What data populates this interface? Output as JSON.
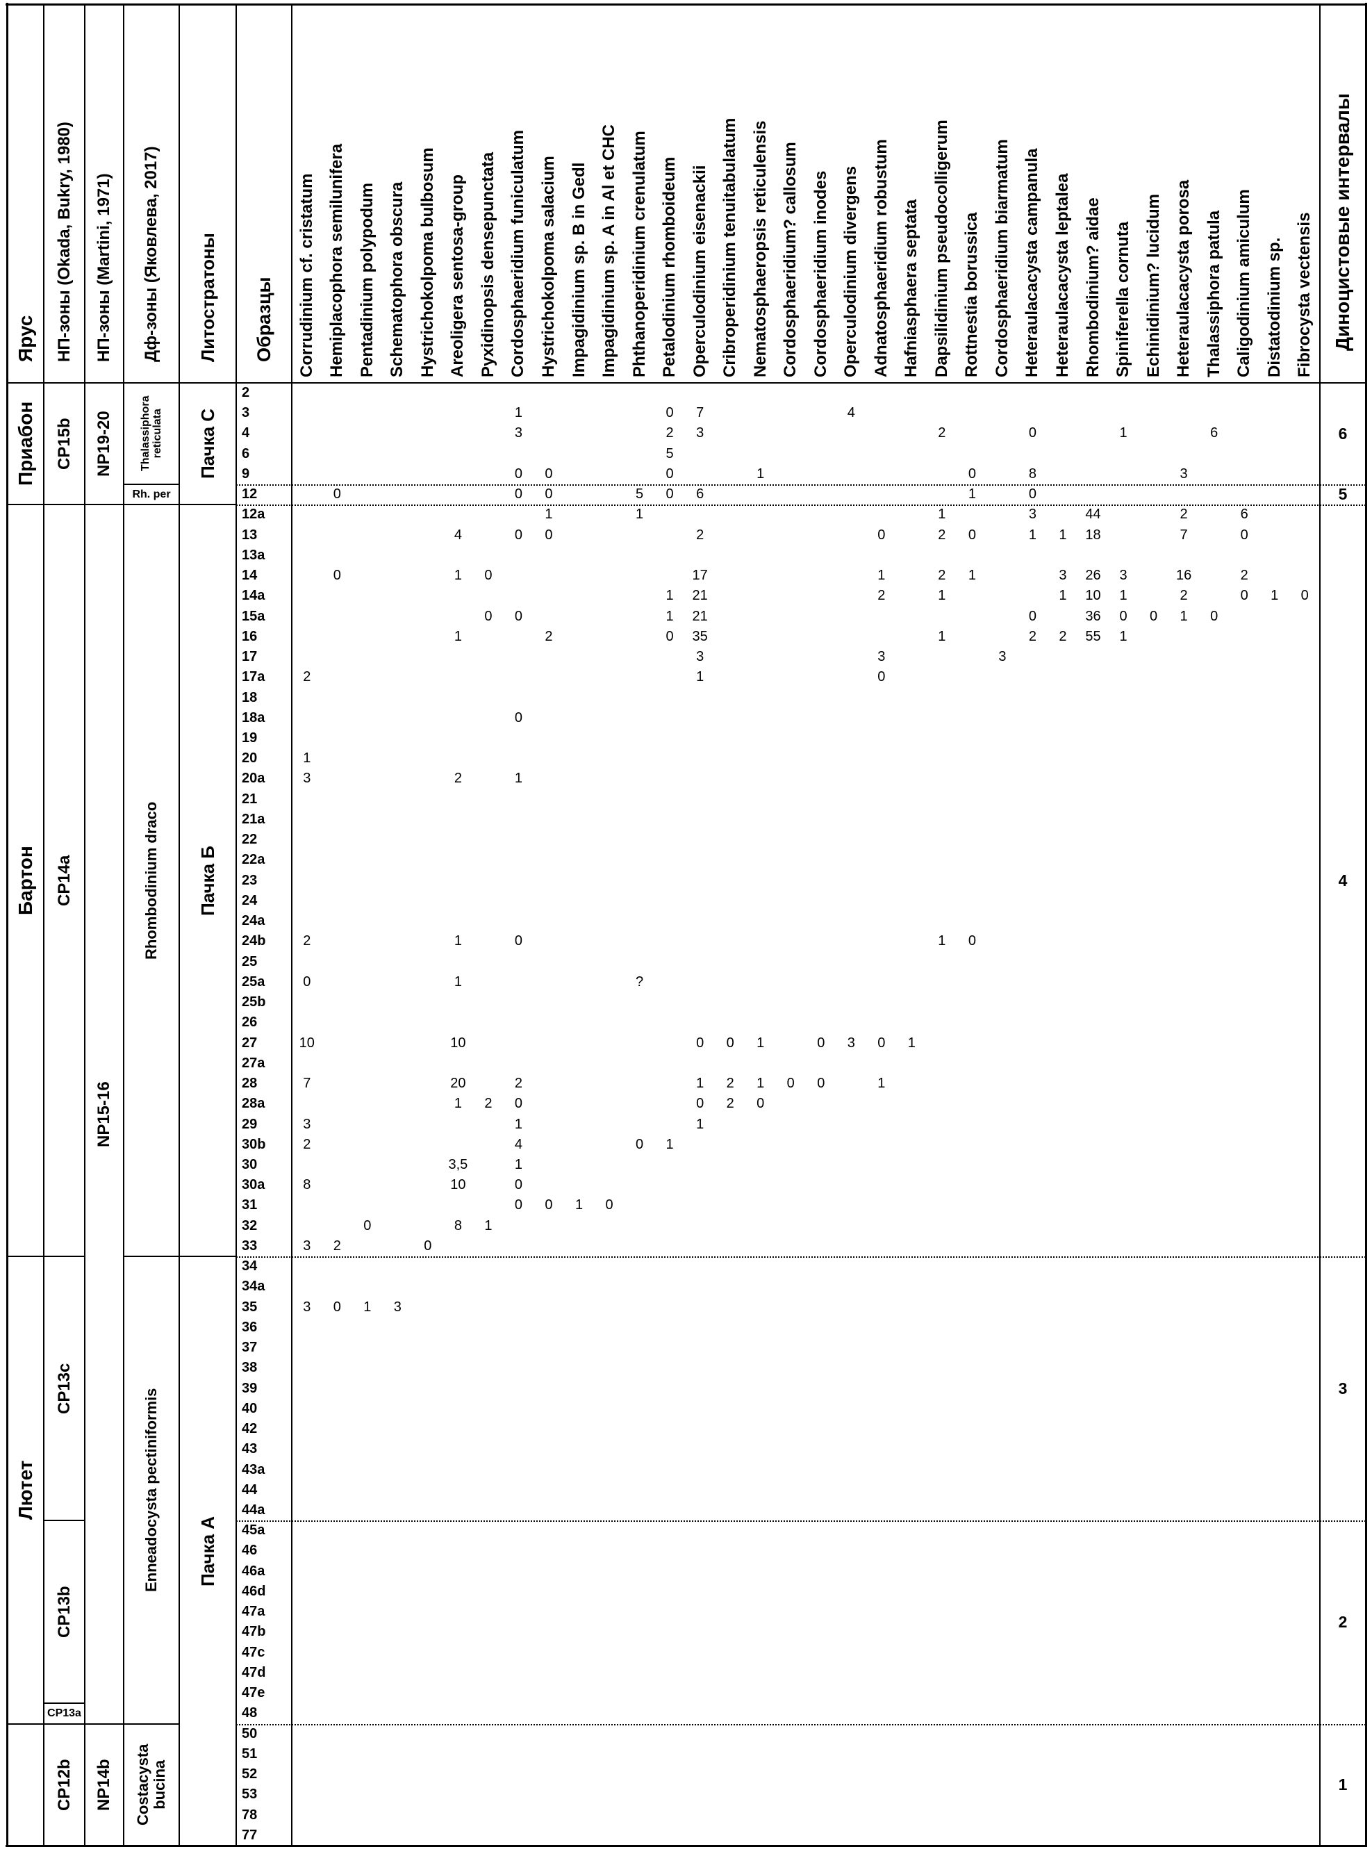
{
  "columns": {
    "stage": "Ярус",
    "cp": "НП-зоны (Okada, Bukry, 1980)",
    "np": "НП-зоны (Martini, 1971)",
    "df": "Дф-зоны (Яковлева, 2017)",
    "litho": "Литостратоны",
    "samples": "Образцы",
    "intervals": "Диноцистовые интервалы"
  },
  "colors": {
    "ink": "#000000",
    "background": "#ffffff"
  },
  "chart_data": {
    "type": "table",
    "species": [
      "Corrudinium cf. cristatum",
      "Hemiplacophora semilunifera",
      "Pentadinium polypodum",
      "Schematophora obscura",
      "Hystrichokolpoma bulbosum",
      "Areoligera sentosa-group",
      "Pyxidinopsis densepunctata",
      "Cordosphaeridium funiculatum",
      "Hystrichokolpoma salacium",
      "Impagidinium sp. B in Gedl",
      "Impagidinium sp. A in Al et CHC",
      "Phthanoperidinium crenulatum",
      "Petalodinium rhomboideum",
      "Operculodinium eisenackii",
      "Cribroperidinium tenuitabulatum",
      "Nematosphaeropsis reticulensis",
      "Cordosphaeridium? callosum",
      "Cordosphaeridium inodes",
      "Operculodinium divergens",
      "Adnatosphaeridium robustum",
      "Hafniasphaera septata",
      "Dapsilidinium pseudocolligerum",
      "Rottnestia borussica",
      "Cordosphaeridium biarmatum",
      "Heteraulacacysta campanula",
      "Heteraulacacysta leptalea",
      "Rhombodinium? aidae",
      "Spiniferella cornuta",
      "Echinidinium? lucidum",
      "Heteraulacacysta porosa",
      "Thalassiphora patula",
      "Caligodinium amiculum",
      "Distatodinium sp.",
      "Fibrocysta vectensis"
    ],
    "samples": [
      "2",
      "3",
      "4",
      "6",
      "9",
      "12",
      "12a",
      "13",
      "13a",
      "14",
      "14a",
      "15a",
      "16",
      "17",
      "17a",
      "18",
      "18a",
      "19",
      "20",
      "20a",
      "21",
      "21a",
      "22",
      "22a",
      "23",
      "24",
      "24a",
      "24b",
      "25",
      "25a",
      "25b",
      "26",
      "27",
      "27a",
      "28",
      "28a",
      "29",
      "30b",
      "30",
      "30a",
      "31",
      "32",
      "33",
      "34",
      "34a",
      "35",
      "36",
      "37",
      "38",
      "39",
      "40",
      "42",
      "43",
      "43a",
      "44",
      "44a",
      "45a",
      "46",
      "46a",
      "46d",
      "47a",
      "47b",
      "47c",
      "47d",
      "47e",
      "48",
      "50",
      "51",
      "52",
      "53",
      "78",
      "77"
    ],
    "stage_zones": [
      {
        "label": "Приабон",
        "from": "2",
        "to": "12"
      },
      {
        "label": "Бартон",
        "from": "12a",
        "to": "33"
      },
      {
        "label": "Лютет",
        "from": "34",
        "to": "48"
      },
      {
        "label": "",
        "from": "50",
        "to": "77"
      }
    ],
    "cp_zones": [
      {
        "label": "CP15b",
        "from": "2",
        "to": "12"
      },
      {
        "label": "CP14a",
        "from": "12a",
        "to": "33"
      },
      {
        "label": "CP13c",
        "from": "34",
        "to": "44a"
      },
      {
        "label": "CP13b",
        "from": "45a",
        "to": "47e"
      },
      {
        "label": "CP13a",
        "from": "48",
        "to": "48",
        "horizontal": true,
        "small": true
      },
      {
        "label": "CP12b",
        "from": "50",
        "to": "77"
      }
    ],
    "np_zones": [
      {
        "label": "NP19-20",
        "from": "2",
        "to": "12"
      },
      {
        "label": "NP15-16",
        "from": "12a",
        "to": "48"
      },
      {
        "label": "NP14b",
        "from": "50",
        "to": "77"
      }
    ],
    "df_zones": [
      {
        "label": "Thalassiphora reticulata",
        "from": "2",
        "to": "9",
        "two_line": true,
        "small": true
      },
      {
        "label": "Rh. per",
        "from": "12",
        "to": "12",
        "horizontal": true,
        "small": true
      },
      {
        "label": "Rhombodinium draco",
        "from": "12a",
        "to": "33"
      },
      {
        "label": "Enneadocysta pectiniformis",
        "from": "34",
        "to": "48"
      },
      {
        "label": "Costacysta bucina",
        "from": "50",
        "to": "77",
        "two_line": true
      }
    ],
    "litho_zones": [
      {
        "label": "Пачка С",
        "from": "2",
        "to": "12"
      },
      {
        "label": "Пачка Б",
        "from": "12a",
        "to": "33"
      },
      {
        "label": "Пачка А",
        "from": "34",
        "to": "77"
      }
    ],
    "intervals": [
      {
        "label": "6",
        "from": "2",
        "to": "9"
      },
      {
        "label": "5",
        "from": "12",
        "to": "12"
      },
      {
        "label": "4",
        "from": "12a",
        "to": "33"
      },
      {
        "label": "3",
        "from": "34",
        "to": "44a"
      },
      {
        "label": "2",
        "from": "45a",
        "to": "48"
      },
      {
        "label": "1",
        "from": "50",
        "to": "77"
      }
    ],
    "occurrences": {
      "3": [
        [
          7,
          "1"
        ],
        [
          12,
          "0"
        ],
        [
          13,
          "7"
        ],
        [
          18,
          "4"
        ]
      ],
      "4": [
        [
          7,
          "3"
        ],
        [
          12,
          "2"
        ],
        [
          13,
          "3"
        ],
        [
          21,
          "2"
        ],
        [
          24,
          "0"
        ],
        [
          27,
          "1"
        ],
        [
          30,
          "6"
        ]
      ],
      "6": [
        [
          12,
          "5"
        ]
      ],
      "9": [
        [
          7,
          "0"
        ],
        [
          8,
          "0"
        ],
        [
          12,
          "0"
        ],
        [
          15,
          "1"
        ],
        [
          22,
          "0"
        ],
        [
          24,
          "8"
        ],
        [
          29,
          "3"
        ]
      ],
      "12": [
        [
          1,
          "0"
        ],
        [
          7,
          "0"
        ],
        [
          8,
          "0"
        ],
        [
          11,
          "5"
        ],
        [
          12,
          "0"
        ],
        [
          13,
          "6"
        ],
        [
          22,
          "1"
        ],
        [
          24,
          "0"
        ]
      ],
      "12a": [
        [
          8,
          "1"
        ],
        [
          11,
          "1"
        ],
        [
          21,
          "1"
        ],
        [
          24,
          "3"
        ],
        [
          26,
          "44"
        ],
        [
          29,
          "2"
        ],
        [
          31,
          "6"
        ]
      ],
      "13": [
        [
          5,
          "4"
        ],
        [
          7,
          "0"
        ],
        [
          8,
          "0"
        ],
        [
          13,
          "2"
        ],
        [
          19,
          "0"
        ],
        [
          21,
          "2"
        ],
        [
          22,
          "0"
        ],
        [
          24,
          "1"
        ],
        [
          25,
          "1"
        ],
        [
          26,
          "18"
        ],
        [
          29,
          "7"
        ],
        [
          31,
          "0"
        ]
      ],
      "14": [
        [
          1,
          "0"
        ],
        [
          5,
          "1"
        ],
        [
          6,
          "0"
        ],
        [
          13,
          "17"
        ],
        [
          19,
          "1"
        ],
        [
          21,
          "2"
        ],
        [
          22,
          "1"
        ],
        [
          25,
          "3"
        ],
        [
          26,
          "26"
        ],
        [
          27,
          "3"
        ],
        [
          29,
          "16"
        ],
        [
          31,
          "2"
        ]
      ],
      "14a": [
        [
          12,
          "1"
        ],
        [
          13,
          "21"
        ],
        [
          19,
          "2"
        ],
        [
          21,
          "1"
        ],
        [
          25,
          "1"
        ],
        [
          26,
          "10"
        ],
        [
          27,
          "1"
        ],
        [
          29,
          "2"
        ],
        [
          31,
          "0"
        ],
        [
          32,
          "1"
        ],
        [
          33,
          "0"
        ]
      ],
      "15a": [
        [
          6,
          "0"
        ],
        [
          7,
          "0"
        ],
        [
          12,
          "1"
        ],
        [
          13,
          "21"
        ],
        [
          24,
          "0"
        ],
        [
          26,
          "36"
        ],
        [
          27,
          "0"
        ],
        [
          28,
          "0"
        ],
        [
          29,
          "1"
        ],
        [
          30,
          "0"
        ]
      ],
      "16": [
        [
          5,
          "1"
        ],
        [
          8,
          "2"
        ],
        [
          12,
          "0"
        ],
        [
          13,
          "35"
        ],
        [
          21,
          "1"
        ],
        [
          24,
          "2"
        ],
        [
          25,
          "2"
        ],
        [
          26,
          "55"
        ],
        [
          27,
          "1"
        ]
      ],
      "17": [
        [
          13,
          "3"
        ],
        [
          19,
          "3"
        ],
        [
          23,
          "3"
        ]
      ],
      "17a": [
        [
          0,
          "2"
        ],
        [
          13,
          "1"
        ],
        [
          19,
          "0"
        ]
      ],
      "18a": [
        [
          7,
          "0"
        ]
      ],
      "20": [
        [
          0,
          "1"
        ]
      ],
      "20a": [
        [
          0,
          "3"
        ],
        [
          5,
          "2"
        ],
        [
          7,
          "1"
        ]
      ],
      "24b": [
        [
          0,
          "2"
        ],
        [
          5,
          "1"
        ],
        [
          7,
          "0"
        ],
        [
          21,
          "1"
        ],
        [
          22,
          "0"
        ]
      ],
      "25a": [
        [
          0,
          "0"
        ],
        [
          5,
          "1"
        ],
        [
          11,
          "?"
        ]
      ],
      "27": [
        [
          0,
          "10"
        ],
        [
          5,
          "10"
        ],
        [
          13,
          "0"
        ],
        [
          14,
          "0"
        ],
        [
          15,
          "1"
        ],
        [
          17,
          "0"
        ],
        [
          18,
          "3"
        ],
        [
          19,
          "0"
        ],
        [
          20,
          "1"
        ]
      ],
      "28": [
        [
          0,
          "7"
        ],
        [
          5,
          "20"
        ],
        [
          7,
          "2"
        ],
        [
          13,
          "1"
        ],
        [
          14,
          "2"
        ],
        [
          15,
          "1"
        ],
        [
          16,
          "0"
        ],
        [
          17,
          "0"
        ],
        [
          19,
          "1"
        ]
      ],
      "28a": [
        [
          5,
          "1"
        ],
        [
          6,
          "2"
        ],
        [
          7,
          "0"
        ],
        [
          13,
          "0"
        ],
        [
          14,
          "2"
        ],
        [
          15,
          "0"
        ]
      ],
      "29": [
        [
          0,
          "3"
        ],
        [
          7,
          "1"
        ],
        [
          13,
          "1"
        ]
      ],
      "30b": [
        [
          0,
          "2"
        ],
        [
          7,
          "4"
        ],
        [
          11,
          "0"
        ],
        [
          12,
          "1"
        ]
      ],
      "30": [
        [
          5,
          "3,5"
        ],
        [
          7,
          "1"
        ]
      ],
      "30a": [
        [
          0,
          "8"
        ],
        [
          5,
          "10"
        ],
        [
          7,
          "0"
        ]
      ],
      "31": [
        [
          7,
          "0"
        ],
        [
          8,
          "0"
        ],
        [
          9,
          "1"
        ],
        [
          10,
          "0"
        ]
      ],
      "32": [
        [
          2,
          "0"
        ],
        [
          5,
          "8"
        ],
        [
          6,
          "1"
        ]
      ],
      "33": [
        [
          0,
          "3"
        ],
        [
          1,
          "2"
        ],
        [
          4,
          "0"
        ]
      ],
      "35": [
        [
          0,
          "3"
        ],
        [
          1,
          "0"
        ],
        [
          2,
          "1"
        ],
        [
          3,
          "3"
        ]
      ]
    }
  }
}
